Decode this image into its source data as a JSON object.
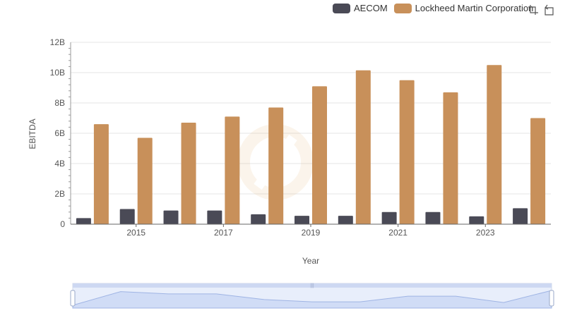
{
  "chart_data": {
    "type": "bar",
    "x": [
      2014,
      2015,
      2016,
      2017,
      2018,
      2019,
      2020,
      2021,
      2022,
      2023,
      2024
    ],
    "x_tick_labels": [
      "2015",
      "2017",
      "2019",
      "2021",
      "2023"
    ],
    "xlabel": "Year",
    "ylabel": "EBITDA",
    "ylim": [
      0,
      12000000000
    ],
    "y_tick_labels": [
      "0",
      "2B",
      "4B",
      "6B",
      "8B",
      "10B",
      "12B"
    ],
    "grid": true,
    "legend_placement": "top-right",
    "series": [
      {
        "name": "AECOM",
        "color": "#4a4a56",
        "values": [
          400000000,
          1000000000,
          900000000,
          900000000,
          650000000,
          550000000,
          550000000,
          800000000,
          800000000,
          520000000,
          1050000000
        ]
      },
      {
        "name": "Lockheed Martin Corporation",
        "color": "#c8905a",
        "values": [
          6600000000,
          5700000000,
          6700000000,
          7100000000,
          7700000000,
          9100000000,
          10150000000,
          9500000000,
          8700000000,
          10500000000,
          7000000000
        ]
      }
    ]
  },
  "toolbox": {
    "zoom_icon": "zoom-icon",
    "restore_icon": "restore-icon"
  },
  "data_zoom": {
    "range_start": 0,
    "range_end": 100
  }
}
